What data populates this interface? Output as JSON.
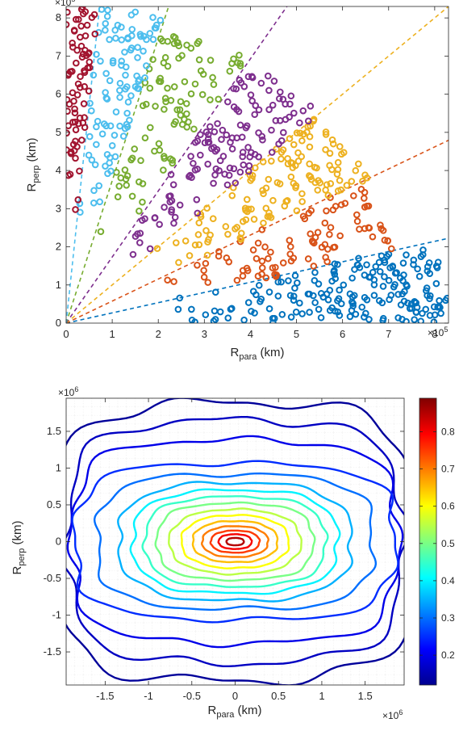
{
  "chart_data": [
    {
      "type": "scatter",
      "marker": "open-circle",
      "xlabel_main": "R",
      "xlabel_sub": "para",
      "xlabel_unit": " (km)",
      "ylabel_main": "R",
      "ylabel_sub": "perp",
      "ylabel_unit": " (km)",
      "x_exponent_label": "×10",
      "x_exponent_power": "5",
      "y_exponent_label": "×10",
      "y_exponent_power": "5",
      "xlim": [
        0,
        8.3
      ],
      "ylim": [
        0,
        8.3
      ],
      "xticks": [
        0,
        1,
        2,
        3,
        4,
        5,
        6,
        7,
        8
      ],
      "yticks": [
        0,
        1,
        2,
        3,
        4,
        5,
        6,
        7,
        8
      ],
      "xtick_labels": [
        "0",
        "1",
        "2",
        "3",
        "4",
        "5",
        "6",
        "7",
        "8"
      ],
      "ytick_labels": [
        "0",
        "1",
        "2",
        "3",
        "4",
        "5",
        "6",
        "7",
        "8"
      ],
      "grid": false,
      "dashed_sector_boundaries_deg": [
        15,
        30,
        45,
        60,
        75,
        85
      ],
      "series": [
        {
          "color": "#0072BD",
          "angle_deg": [
            0,
            15
          ],
          "r_range": [
            2.2,
            8.3
          ],
          "approx_points": 190
        },
        {
          "color": "#D95319",
          "angle_deg": [
            15,
            30
          ],
          "r_range": [
            2.0,
            7.4
          ],
          "approx_points": 90
        },
        {
          "color": "#EDB120",
          "angle_deg": [
            30,
            45
          ],
          "r_range": [
            2.0,
            7.6
          ],
          "approx_points": 130
        },
        {
          "color": "#7E2F8E",
          "angle_deg": [
            45,
            60
          ],
          "r_range": [
            2.0,
            7.9
          ],
          "approx_points": 130
        },
        {
          "color": "#77AC30",
          "angle_deg": [
            60,
            75
          ],
          "r_range": [
            2.3,
            8.0
          ],
          "approx_points": 95
        },
        {
          "color": "#4DBEEE",
          "angle_deg": [
            75,
            85
          ],
          "r_range": [
            2.3,
            8.3
          ],
          "approx_points": 100
        },
        {
          "color": "#A2142F",
          "angle_deg": [
            85,
            90
          ],
          "r_range": [
            2.2,
            8.3
          ],
          "approx_points": 75
        }
      ]
    },
    {
      "type": "contour",
      "xlabel_main": "R",
      "xlabel_sub": "para",
      "xlabel_unit": " (km)",
      "ylabel_main": "R",
      "ylabel_sub": "perp",
      "ylabel_unit": " (km)",
      "x_exponent_label": "×10",
      "x_exponent_power": "6",
      "y_exponent_label": "×10",
      "y_exponent_power": "6",
      "xlim": [
        -1.95,
        1.95
      ],
      "ylim": [
        -1.95,
        1.95
      ],
      "xticks": [
        -1.5,
        -1,
        -0.5,
        0,
        0.5,
        1,
        1.5
      ],
      "yticks": [
        -1.5,
        -1,
        -0.5,
        0,
        0.5,
        1,
        1.5
      ],
      "xtick_labels": [
        "-1.5",
        "-1",
        "-0.5",
        "0",
        "0.5",
        "1",
        "1.5"
      ],
      "ytick_labels": [
        "-1.5",
        "-1",
        "-0.5",
        "0",
        "0.5",
        "1",
        "1.5"
      ],
      "grid": "minor dotted",
      "colormap": "jet",
      "clim": [
        0.12,
        0.89
      ],
      "colorbar_ticks": [
        0.2,
        0.3,
        0.4,
        0.5,
        0.6,
        0.7,
        0.8
      ],
      "colorbar_tick_labels": [
        "0.2",
        "0.3",
        "0.4",
        "0.5",
        "0.6",
        "0.7",
        "0.8"
      ],
      "levels": [
        {
          "value": 0.14,
          "half_width": 2.1,
          "half_height": 1.89
        },
        {
          "value": 0.17,
          "half_width": 1.93,
          "half_height": 1.65
        },
        {
          "value": 0.2,
          "half_width": 1.88,
          "half_height": 1.38
        },
        {
          "value": 0.25,
          "half_width": 1.84,
          "half_height": 1.06
        },
        {
          "value": 0.3,
          "half_width": 1.58,
          "half_height": 0.91
        },
        {
          "value": 0.35,
          "half_width": 1.34,
          "half_height": 0.8
        },
        {
          "value": 0.4,
          "half_width": 1.18,
          "half_height": 0.7
        },
        {
          "value": 0.45,
          "half_width": 1.04,
          "half_height": 0.61
        },
        {
          "value": 0.5,
          "half_width": 0.9,
          "half_height": 0.52
        },
        {
          "value": 0.55,
          "half_width": 0.76,
          "half_height": 0.44
        },
        {
          "value": 0.6,
          "half_width": 0.62,
          "half_height": 0.36
        },
        {
          "value": 0.65,
          "half_width": 0.49,
          "half_height": 0.28
        },
        {
          "value": 0.7,
          "half_width": 0.38,
          "half_height": 0.21
        },
        {
          "value": 0.75,
          "half_width": 0.28,
          "half_height": 0.15
        },
        {
          "value": 0.8,
          "half_width": 0.19,
          "half_height": 0.1
        },
        {
          "value": 0.85,
          "half_width": 0.1,
          "half_height": 0.05
        }
      ]
    }
  ]
}
